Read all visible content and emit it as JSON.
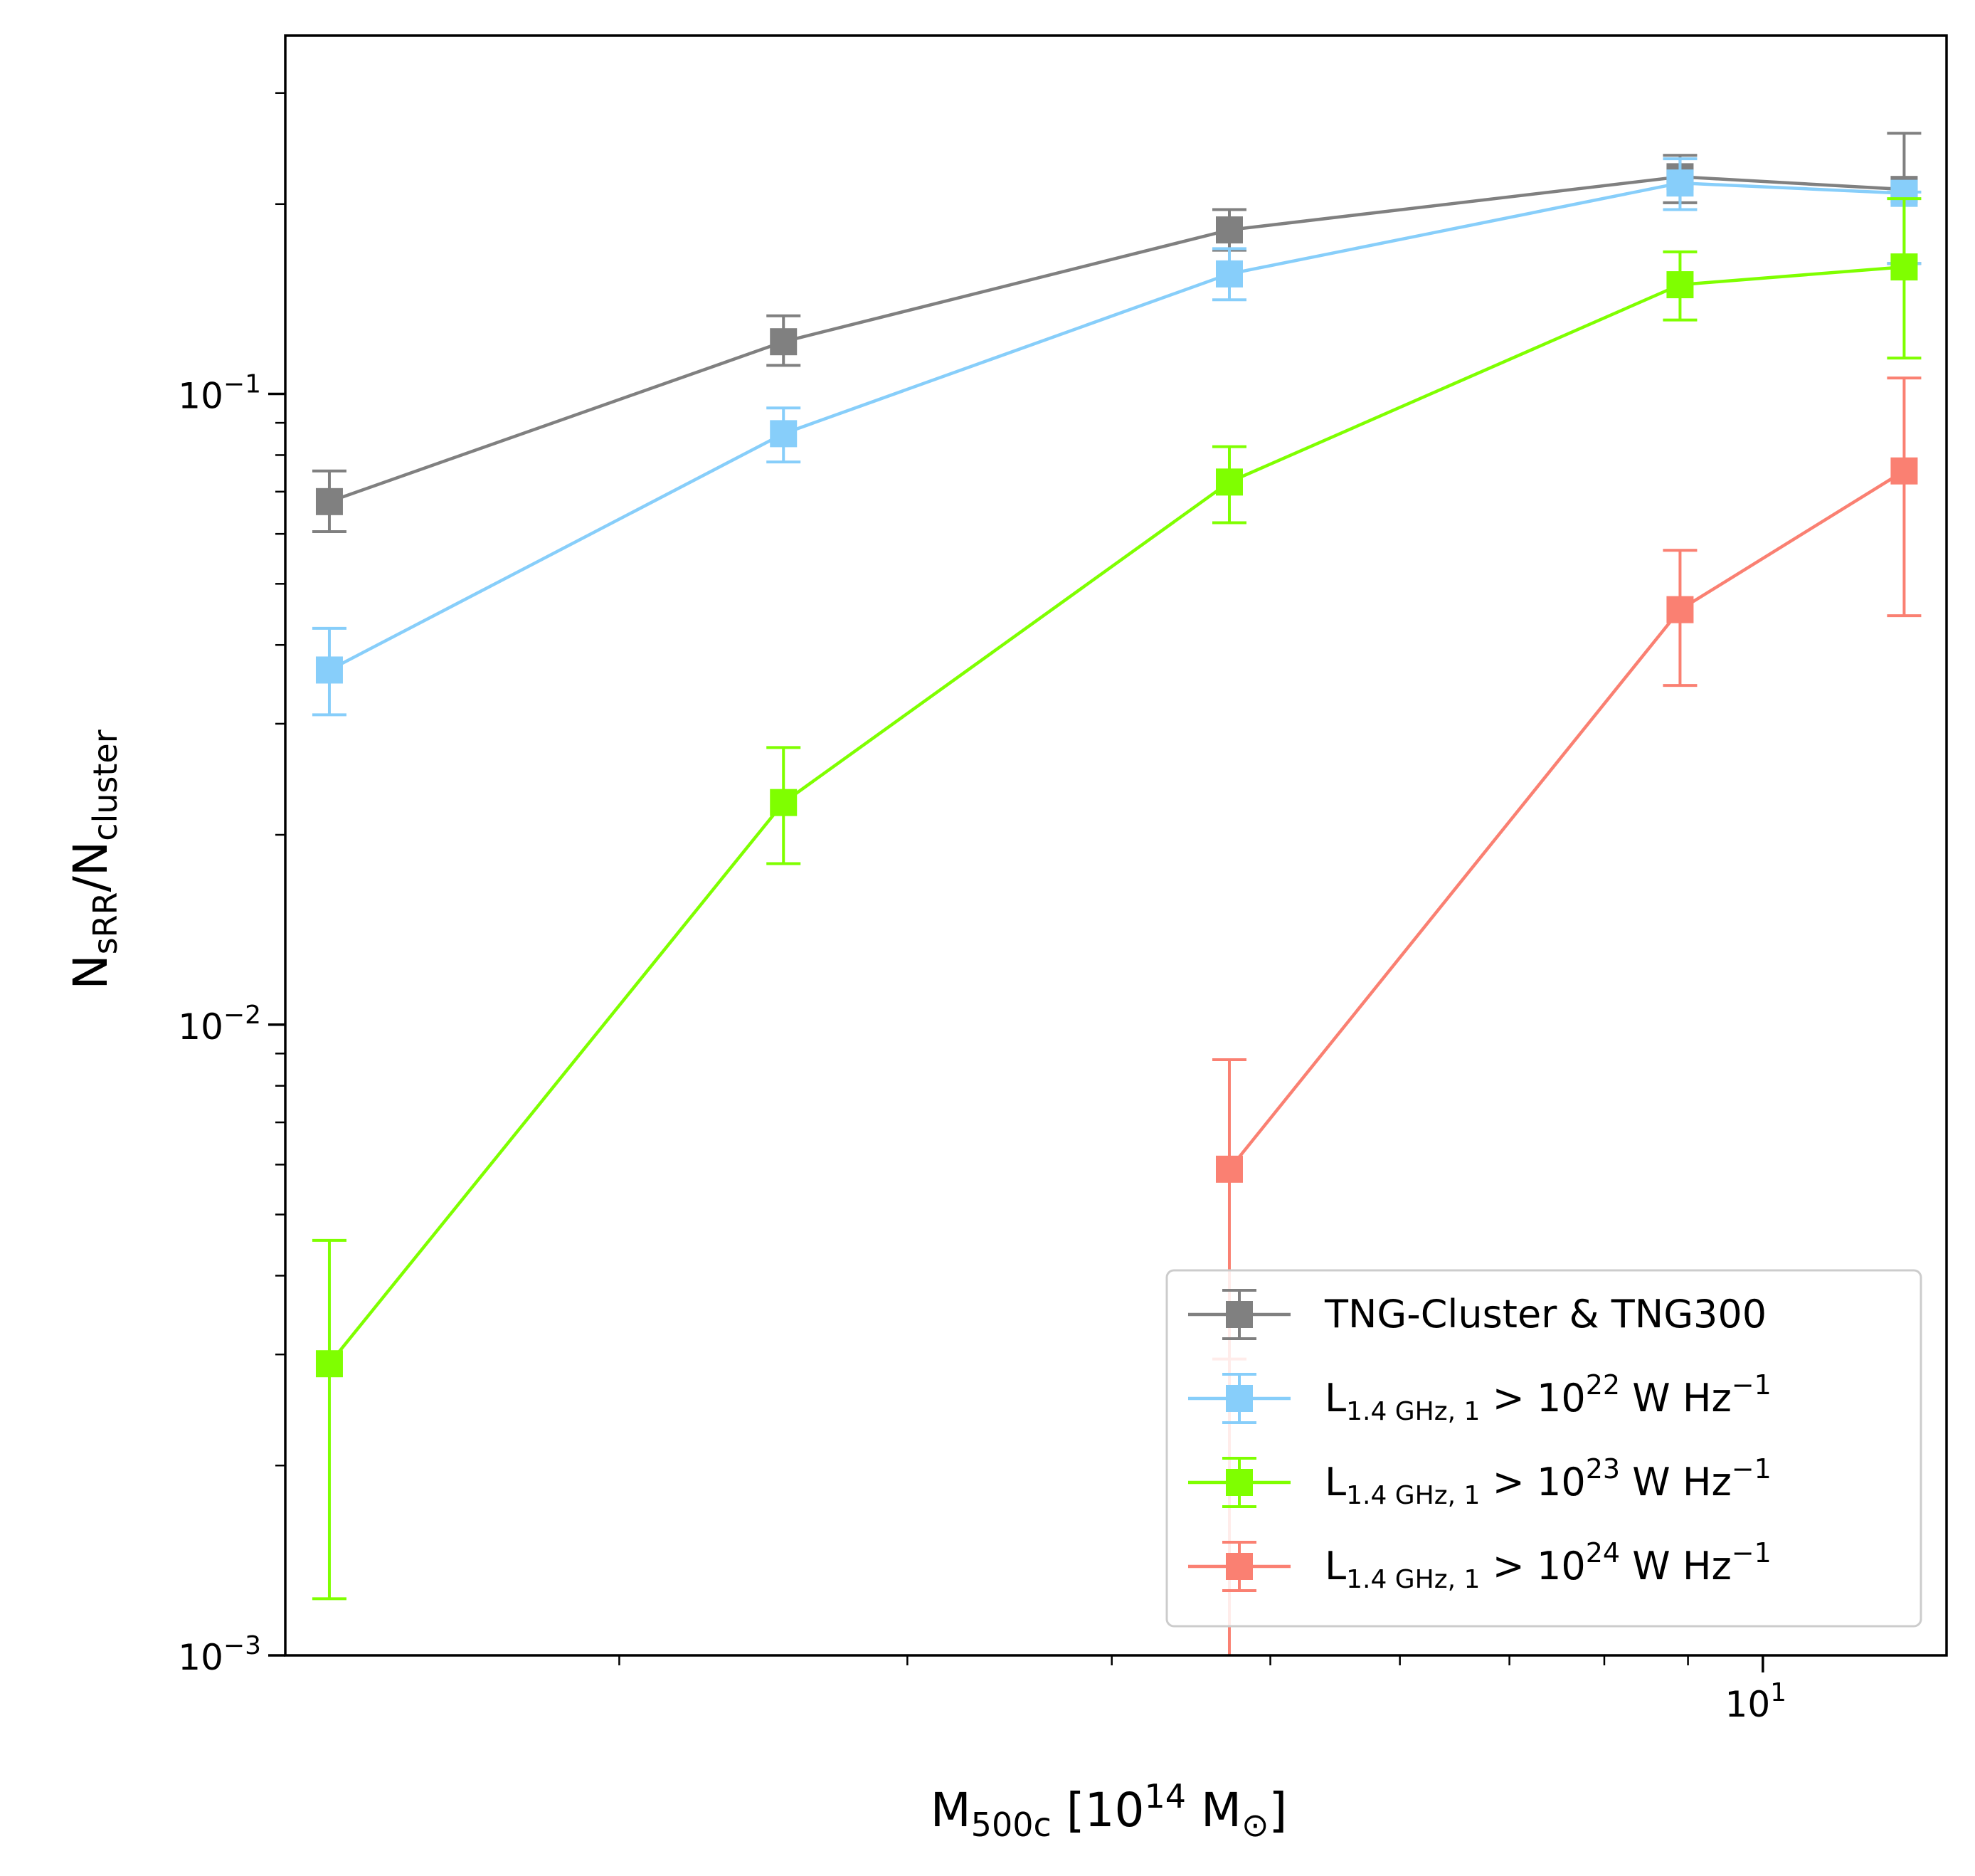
{
  "chart_data": {
    "type": "line",
    "xlabel": {
      "main": "M",
      "sub": "500c",
      "rest": " [10",
      "sup": "14",
      "unit": " M",
      "unit_sub": "⊙",
      "close": "]"
    },
    "ylabel": {
      "n1": "N",
      "sub1": "sRR",
      "slash": "/N",
      "sub2": "cluster"
    },
    "x_scale": "log",
    "y_scale": "log",
    "xlim": [
      1.25,
      12.95
    ],
    "ylim": [
      0.001,
      0.37
    ],
    "x_ticks": [
      {
        "value": 10,
        "base": "10",
        "exp": "1"
      }
    ],
    "y_ticks": [
      {
        "value": 0.001,
        "base": "10",
        "exp": "−3"
      },
      {
        "value": 0.01,
        "base": "10",
        "exp": "−2"
      },
      {
        "value": 0.1,
        "base": "10",
        "exp": "−1"
      }
    ],
    "grid": false,
    "legend_position": "lower-right",
    "series": [
      {
        "name": "TNG-Cluster & TNG300",
        "legend": {
          "plain": "TNG-Cluster & TNG300"
        },
        "color": "#808080",
        "x": [
          1.33,
          2.52,
          4.72,
          8.9,
          12.2
        ],
        "y": [
          0.0675,
          0.121,
          0.182,
          0.221,
          0.211
        ],
        "yerr_low": [
          0.0605,
          0.111,
          0.169,
          0.201,
          0.161
        ],
        "yerr_high": [
          0.0755,
          0.133,
          0.196,
          0.239,
          0.259
        ]
      },
      {
        "name": "L1.4 GHz,1 > 10^22 W Hz^-1",
        "legend": {
          "main": "L",
          "sub": "1.4 GHz, 1",
          "mid": " > 10",
          "sup": "22",
          "unit": " W Hz",
          "unit_sup": "−1"
        },
        "color": "#87cefa",
        "x": [
          1.33,
          2.52,
          4.72,
          8.9,
          12.2
        ],
        "y": [
          0.0365,
          0.0865,
          0.155,
          0.216,
          0.208
        ],
        "yerr_low": [
          0.031,
          0.078,
          0.141,
          0.196,
          0.161
        ],
        "yerr_high": [
          0.0425,
          0.095,
          0.17,
          0.236,
          0.209
        ]
      },
      {
        "name": "L1.4 GHz,1 > 10^23 W Hz^-1",
        "legend": {
          "main": "L",
          "sub": "1.4 GHz, 1",
          "mid": " > 10",
          "sup": "23",
          "unit": " W Hz",
          "unit_sup": "−1"
        },
        "color": "#7fff00",
        "x": [
          1.33,
          2.52,
          4.72,
          8.9,
          12.2
        ],
        "y": [
          0.0029,
          0.0225,
          0.0725,
          0.149,
          0.159
        ],
        "yerr_low": [
          0.00123,
          0.018,
          0.0625,
          0.131,
          0.114
        ],
        "yerr_high": [
          0.00455,
          0.0275,
          0.0825,
          0.168,
          0.204
        ]
      },
      {
        "name": "L1.4 GHz,1 > 10^24 W Hz^-1",
        "legend": {
          "main": "L",
          "sub": "1.4 GHz, 1",
          "mid": " > 10",
          "sup": "24",
          "unit": " W Hz",
          "unit_sup": "−1"
        },
        "color": "#fa8072",
        "x": [
          4.72,
          8.9,
          12.2
        ],
        "y": [
          0.0059,
          0.0455,
          0.0755
        ],
        "yerr_low": [
          0.001,
          0.0345,
          0.0445
        ],
        "yerr_high": [
          0.0088,
          0.0565,
          0.106
        ],
        "extra_cap": [
          {
            "x": 4.72,
            "y": 0.00295
          }
        ]
      }
    ]
  }
}
